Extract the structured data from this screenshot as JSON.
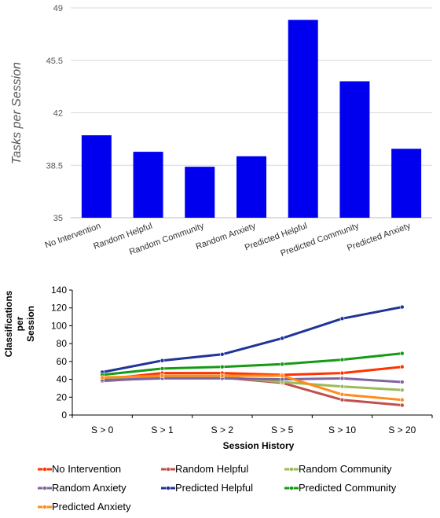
{
  "chart_data": [
    {
      "type": "bar",
      "ylabel": "Tasks per Session",
      "xlabel": "",
      "ylim": [
        35,
        49
      ],
      "yticks": [
        "49",
        "45.5",
        "42",
        "38.5",
        "35"
      ],
      "grid": true,
      "color": "#0000ee",
      "categories": [
        "No Intervention",
        "Random Helpful",
        "Random Community",
        "Random Anxiety",
        "Predicted Helpful",
        "Predicted Community",
        "Predicted Anxiety"
      ],
      "values": [
        40.5,
        39.4,
        38.4,
        39.1,
        48.2,
        44.1,
        39.6
      ]
    },
    {
      "type": "line",
      "xlabel": "Session History",
      "ylabel": "Classifications per Session",
      "ylabel_lines": [
        "Classifications",
        "per",
        "Session"
      ],
      "ylim": [
        0,
        140
      ],
      "yticks": [
        "140",
        "120",
        "100",
        "80",
        "60",
        "40",
        "20",
        "0"
      ],
      "grid": false,
      "legend_position": "bottom",
      "categories": [
        "S > 0",
        "S > 1",
        "S > 2",
        "S > 5",
        "S > 10",
        "S > 20"
      ],
      "series": [
        {
          "name": "No Intervention",
          "color": "#ff3300",
          "values": [
            40,
            47,
            47,
            45,
            47,
            54
          ]
        },
        {
          "name": "Random Helpful",
          "color": "#c0504d",
          "values": [
            38,
            42,
            42,
            36,
            17,
            11
          ]
        },
        {
          "name": "Random Community",
          "color": "#9bbb59",
          "values": [
            41,
            43,
            43,
            37,
            32,
            28
          ]
        },
        {
          "name": "Random Anxiety",
          "color": "#8064a2",
          "values": [
            39,
            41,
            41,
            40,
            41,
            37
          ]
        },
        {
          "name": "Predicted Helpful",
          "color": "#1f3399",
          "values": [
            48,
            61,
            68,
            86,
            108,
            121
          ]
        },
        {
          "name": "Predicted Community",
          "color": "#169a16",
          "values": [
            45,
            52,
            54,
            57,
            62,
            69
          ]
        },
        {
          "name": "Predicted Anxiety",
          "color": "#ff8c1a",
          "values": [
            42,
            44,
            44,
            44,
            23,
            17
          ]
        }
      ]
    }
  ]
}
